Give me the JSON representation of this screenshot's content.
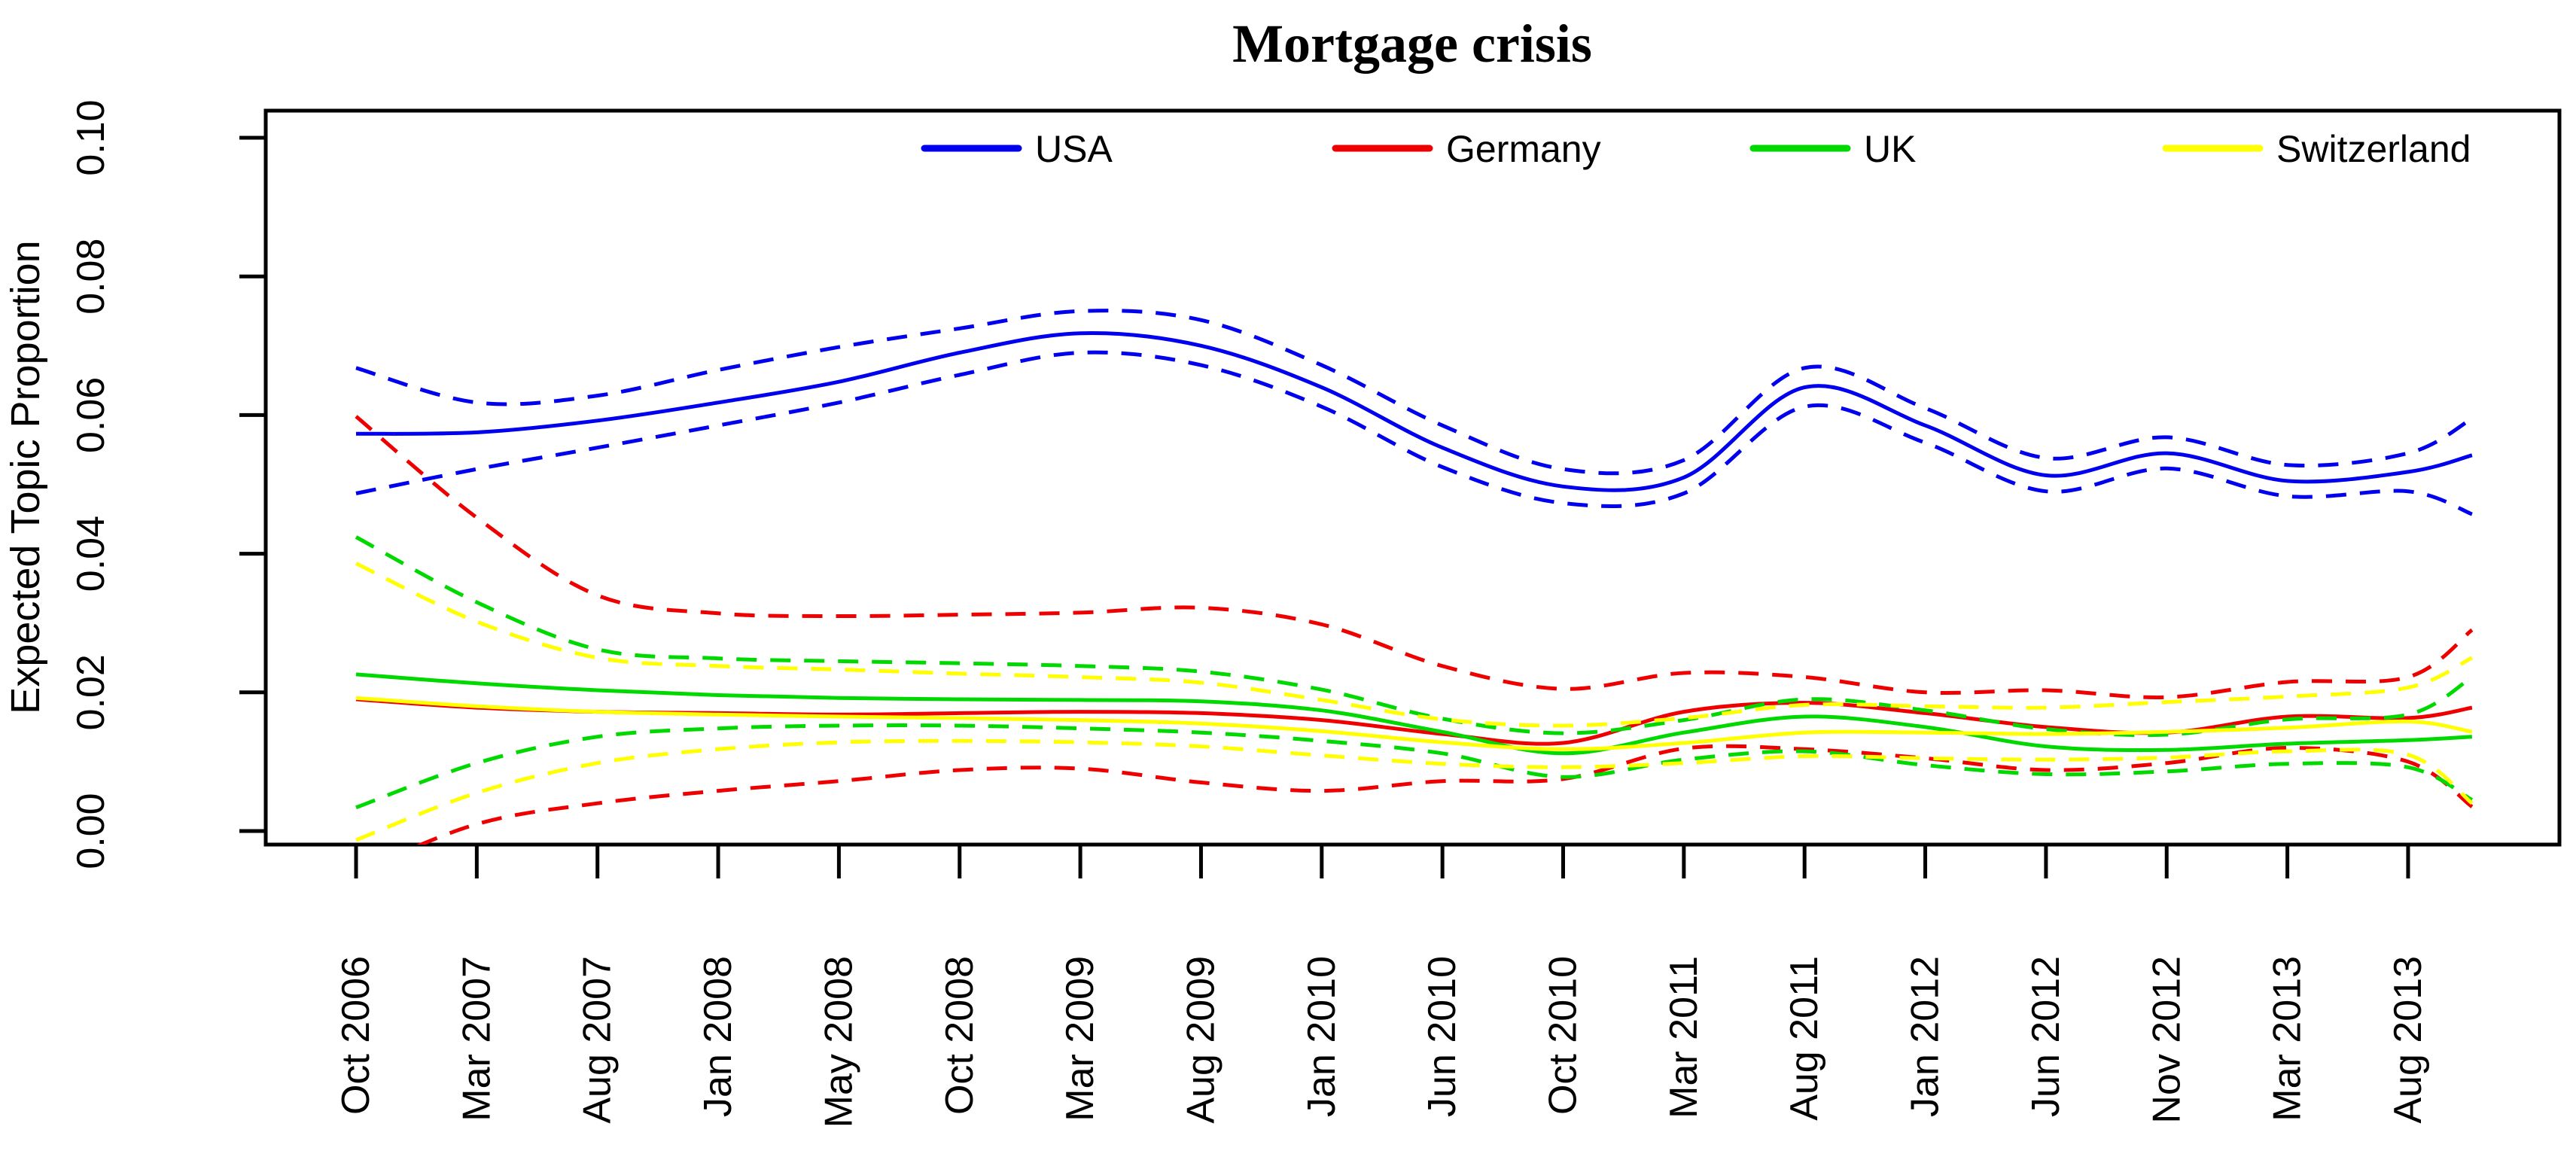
{
  "chart_data": {
    "type": "line",
    "title": "Mortgage crisis",
    "xlabel": "",
    "ylabel": "Expected Topic Proportion",
    "ylim": [
      0.0,
      0.1
    ],
    "ytick_labels": [
      "0.00",
      "0.02",
      "0.04",
      "0.06",
      "0.08",
      "0.10"
    ],
    "ytick_values": [
      0.0,
      0.02,
      0.04,
      0.06,
      0.08,
      0.1
    ],
    "grid": "off",
    "legend_position": "top-inside-horizontal",
    "band_style": "dashed-confidence-interval",
    "categories": [
      "Oct 2006",
      "Mar 2007",
      "Aug 2007",
      "Jan 2008",
      "May 2008",
      "Oct 2008",
      "Mar 2009",
      "Aug 2009",
      "Jan 2010",
      "Jun 2010",
      "Oct 2010",
      "Mar 2011",
      "Aug 2011",
      "Jan 2012",
      "Jun 2012",
      "Nov 2012",
      "Mar 2013",
      "Aug 2013"
    ],
    "x_index": [
      0,
      1,
      2,
      3,
      4,
      5,
      6,
      7,
      8,
      9,
      10,
      11,
      12,
      13,
      14,
      15,
      16,
      17,
      17.53
    ],
    "colors": {
      "usa": "#0000EE",
      "germany": "#EE0000",
      "uk": "#00D900",
      "switzerland": "#FFFF00",
      "axis": "#000000"
    },
    "series": [
      {
        "name": "USA",
        "color": "#0000EE",
        "mean": [
          0.0573,
          0.0575,
          0.0592,
          0.0618,
          0.0648,
          0.069,
          0.0718,
          0.07,
          0.064,
          0.0553,
          0.0497,
          0.051,
          0.064,
          0.0585,
          0.0513,
          0.0545,
          0.0505,
          0.0518,
          0.0542
        ],
        "upper": [
          0.0668,
          0.0618,
          0.0628,
          0.0665,
          0.0698,
          0.0725,
          0.075,
          0.0737,
          0.0672,
          0.0585,
          0.0522,
          0.0535,
          0.0668,
          0.061,
          0.0538,
          0.0568,
          0.0528,
          0.0545,
          0.0595
        ],
        "lower": [
          0.0487,
          0.0522,
          0.0553,
          0.0585,
          0.0618,
          0.0658,
          0.069,
          0.0672,
          0.0612,
          0.0525,
          0.0473,
          0.0487,
          0.0612,
          0.056,
          0.049,
          0.0523,
          0.0483,
          0.049,
          0.0457
        ]
      },
      {
        "name": "Germany",
        "color": "#EE0000",
        "mean": [
          0.019,
          0.0178,
          0.0172,
          0.017,
          0.0168,
          0.017,
          0.0172,
          0.017,
          0.016,
          0.014,
          0.0127,
          0.0172,
          0.0185,
          0.017,
          0.015,
          0.0142,
          0.0165,
          0.0163,
          0.0178
        ],
        "upper": [
          0.0598,
          0.0452,
          0.034,
          0.0314,
          0.031,
          0.0312,
          0.0315,
          0.0322,
          0.0298,
          0.0238,
          0.0205,
          0.0228,
          0.0222,
          0.02,
          0.0203,
          0.0193,
          0.0215,
          0.0222,
          0.029
        ],
        "lower": [
          -0.006,
          0.001,
          0.004,
          0.0058,
          0.0072,
          0.0088,
          0.009,
          0.007,
          0.0058,
          0.0072,
          0.0075,
          0.0119,
          0.0118,
          0.0105,
          0.0088,
          0.0098,
          0.012,
          0.01,
          0.0035
        ]
      },
      {
        "name": "UK",
        "color": "#00D900",
        "mean": [
          0.0226,
          0.0213,
          0.0203,
          0.0196,
          0.0192,
          0.019,
          0.0189,
          0.0187,
          0.0174,
          0.0143,
          0.0112,
          0.0142,
          0.0165,
          0.015,
          0.0122,
          0.0117,
          0.0126,
          0.0131,
          0.0136
        ],
        "upper": [
          0.0424,
          0.033,
          0.0262,
          0.0249,
          0.0245,
          0.0242,
          0.0238,
          0.023,
          0.0204,
          0.0162,
          0.0141,
          0.016,
          0.019,
          0.0174,
          0.0147,
          0.0139,
          0.0161,
          0.0168,
          0.0222
        ],
        "lower": [
          0.0034,
          0.0098,
          0.0136,
          0.0148,
          0.0152,
          0.0152,
          0.0148,
          0.0142,
          0.013,
          0.0112,
          0.0078,
          0.0103,
          0.0115,
          0.0095,
          0.0082,
          0.0086,
          0.0097,
          0.0092,
          0.0045
        ]
      },
      {
        "name": "Switzerland",
        "color": "#FFFF00",
        "mean": [
          0.0192,
          0.018,
          0.0172,
          0.0168,
          0.0165,
          0.0163,
          0.016,
          0.0155,
          0.0144,
          0.0128,
          0.0118,
          0.0127,
          0.0142,
          0.0142,
          0.014,
          0.0143,
          0.0149,
          0.0158,
          0.0143
        ],
        "upper": [
          0.0386,
          0.0302,
          0.025,
          0.0238,
          0.0233,
          0.0227,
          0.0222,
          0.0214,
          0.0189,
          0.0161,
          0.0152,
          0.0163,
          0.0182,
          0.018,
          0.0178,
          0.0186,
          0.0194,
          0.0207,
          0.025
        ],
        "lower": [
          -0.0013,
          0.0055,
          0.0098,
          0.0118,
          0.0128,
          0.013,
          0.0128,
          0.0122,
          0.0109,
          0.0097,
          0.0092,
          0.0098,
          0.0108,
          0.0105,
          0.0103,
          0.0106,
          0.0115,
          0.011,
          0.004
        ]
      }
    ]
  }
}
